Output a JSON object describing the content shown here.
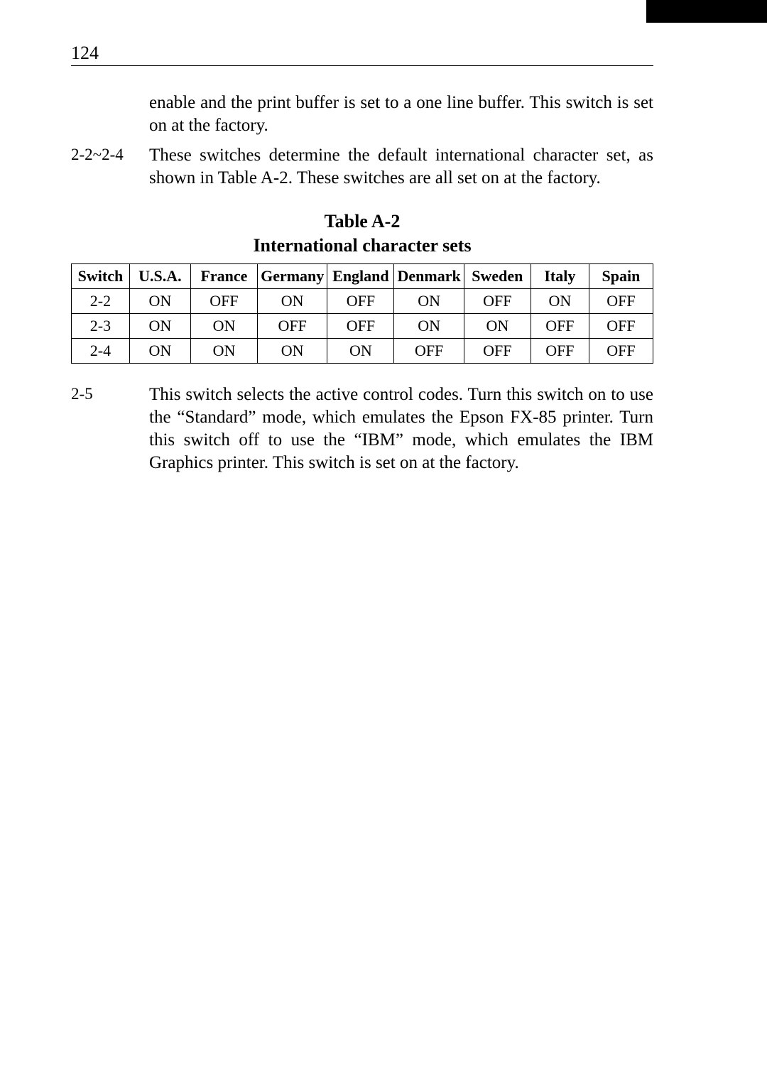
{
  "page_number": "124",
  "paragraphs": {
    "intro_cont": "enable and the print buffer is set to a one line buffer. This switch is set on at the factory.",
    "p22_24_label": "2-2~2-4",
    "p22_24_text": "These switches determine the default international character set, as shown in Table A-2. These switches are all set on at the factory.",
    "p25_label": "2-5",
    "p25_text": "This switch selects the active control codes. Turn this switch on to use the “Standard” mode, which emulates the Epson FX-85 printer. Turn this switch off to use the “IBM” mode, which emulates the IBM Graphics printer. This switch is set on at the factory."
  },
  "table": {
    "caption_line1": "Table A-2",
    "caption_line2": "International character sets",
    "columns": [
      "Switch",
      "U.S.A.",
      "France",
      "Germany",
      "England",
      "Denmark",
      "Sweden",
      "Italy",
      "Spain"
    ],
    "rows": [
      [
        "2-2",
        "ON",
        "OFF",
        "ON",
        "OFF",
        "ON",
        "OFF",
        "ON",
        "OFF"
      ],
      [
        "2-3",
        "ON",
        "ON",
        "OFF",
        "OFF",
        "ON",
        "ON",
        "OFF",
        "OFF"
      ],
      [
        "2-4",
        "ON",
        "ON",
        "ON",
        "ON",
        "OFF",
        "OFF",
        "OFF",
        "OFF"
      ]
    ],
    "col_widths_pct": [
      10,
      10.5,
      11.5,
      12,
      11.5,
      12,
      11.5,
      10,
      11
    ]
  },
  "colors": {
    "text": "#000000",
    "background": "#ffffff",
    "rule": "#000000"
  }
}
